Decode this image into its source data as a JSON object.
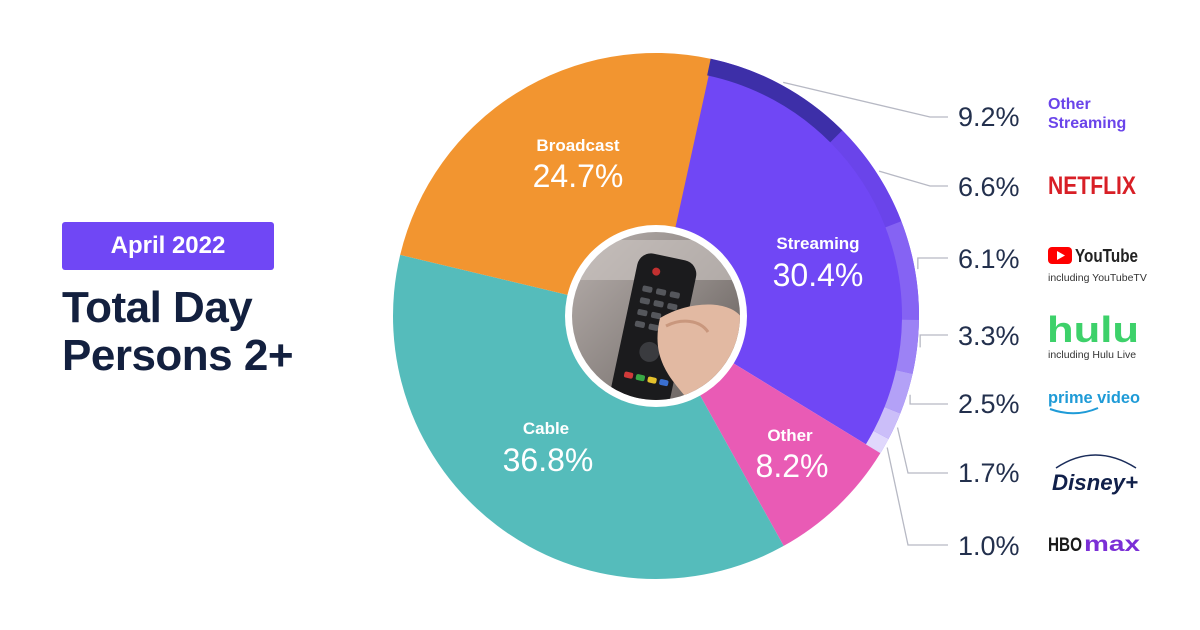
{
  "header": {
    "badge": "April 2022",
    "title_line1": "Total Day",
    "title_line2": "Persons 2+"
  },
  "colors": {
    "badge": "#7047f5",
    "title": "#13203f",
    "streaming": "#7047f5",
    "broadcast": "#f29530",
    "cable": "#55bcbb",
    "other": "#e95bb5"
  },
  "chart_data": {
    "type": "pie",
    "segments": [
      {
        "name": "Streaming",
        "value": 30.4,
        "label": "30.4%",
        "color": "#7047f5"
      },
      {
        "name": "Other",
        "value": 8.2,
        "label": "8.2%",
        "color": "#e95bb5"
      },
      {
        "name": "Cable",
        "value": 36.8,
        "label": "36.8%",
        "color": "#55bcbb"
      },
      {
        "name": "Broadcast",
        "value": 24.7,
        "label": "24.7%",
        "color": "#f29530"
      }
    ],
    "streaming_breakdown": [
      {
        "name": "Other Streaming",
        "value": 9.2,
        "label": "9.2%",
        "color": "#3d2fa8"
      },
      {
        "name": "NETFLIX",
        "value": 6.6,
        "label": "6.6%",
        "color": "#6a44ea"
      },
      {
        "name": "YouTube",
        "sub": "including YouTubeTV",
        "value": 6.1,
        "label": "6.1%",
        "color": "#8563f3"
      },
      {
        "name": "hulu",
        "sub": "including Hulu Live",
        "value": 3.3,
        "label": "3.3%",
        "color": "#9c82f5"
      },
      {
        "name": "prime video",
        "value": 2.5,
        "label": "2.5%",
        "color": "#b3a1f7"
      },
      {
        "name": "Disney+",
        "value": 1.7,
        "label": "1.7%",
        "color": "#cbbef9"
      },
      {
        "name": "HBO max",
        "value": 1.0,
        "label": "1.0%",
        "color": "#e0d8fc"
      }
    ]
  }
}
